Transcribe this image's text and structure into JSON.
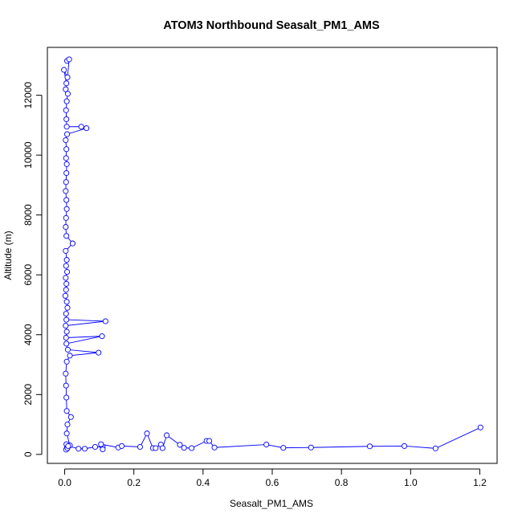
{
  "chart_data": {
    "type": "line",
    "title": "ATOM3 Northbound Seasalt_PM1_AMS",
    "xlabel": "Seasalt_PM1_AMS",
    "ylabel": "Altitude (m)",
    "xlim": [
      -0.05,
      1.25
    ],
    "ylim": [
      -300,
      13600
    ],
    "x_ticks": [
      0.0,
      0.2,
      0.4,
      0.6,
      0.8,
      1.0,
      1.2
    ],
    "x_tick_labels": [
      "0.0",
      "0.2",
      "0.4",
      "0.6",
      "0.8",
      "1.0",
      "1.2"
    ],
    "y_ticks": [
      0,
      2000,
      4000,
      6000,
      8000,
      10000,
      12000
    ],
    "y_tick_labels": [
      "0",
      "2000",
      "4000",
      "6000",
      "8000",
      "10000",
      "12000"
    ],
    "grid": false,
    "series_color": "#0000ff",
    "series": [
      {
        "values": [
          [
            0.007,
            13150
          ],
          [
            0.013,
            13200
          ],
          [
            0.008,
            12600
          ],
          [
            -0.002,
            12850
          ],
          [
            0.005,
            12400
          ],
          [
            0.003,
            12200
          ],
          [
            0.009,
            12050
          ],
          [
            0.006,
            11800
          ],
          [
            0.004,
            11500
          ],
          [
            0.005,
            11200
          ],
          [
            0.006,
            10950
          ],
          [
            0.048,
            10950
          ],
          [
            0.063,
            10900
          ],
          [
            0.007,
            10700
          ],
          [
            0.003,
            10500
          ],
          [
            0.005,
            10200
          ],
          [
            0.004,
            9900
          ],
          [
            0.006,
            9700
          ],
          [
            0.005,
            9400
          ],
          [
            0.004,
            9100
          ],
          [
            0.003,
            8800
          ],
          [
            0.005,
            8500
          ],
          [
            0.006,
            8200
          ],
          [
            0.004,
            7900
          ],
          [
            0.003,
            7600
          ],
          [
            0.005,
            7300
          ],
          [
            0.023,
            7050
          ],
          [
            0.003,
            6800
          ],
          [
            0.006,
            6500
          ],
          [
            0.004,
            6300
          ],
          [
            0.007,
            6100
          ],
          [
            0.003,
            5900
          ],
          [
            0.005,
            5700
          ],
          [
            0.004,
            5500
          ],
          [
            0.002,
            5300
          ],
          [
            0.006,
            5100
          ],
          [
            0.008,
            4900
          ],
          [
            0.004,
            4700
          ],
          [
            0.005,
            4500
          ],
          [
            0.118,
            4450
          ],
          [
            0.003,
            4300
          ],
          [
            0.006,
            4100
          ],
          [
            0.004,
            3900
          ],
          [
            0.108,
            3950
          ],
          [
            0.005,
            3700
          ],
          [
            0.009,
            3500
          ],
          [
            0.098,
            3400
          ],
          [
            0.015,
            3300
          ],
          [
            0.006,
            3100
          ],
          [
            0.003,
            2700
          ],
          [
            0.004,
            2300
          ],
          [
            0.005,
            1900
          ],
          [
            0.006,
            1450
          ],
          [
            0.018,
            1250
          ],
          [
            0.008,
            1000
          ],
          [
            0.006,
            700
          ],
          [
            0.015,
            300
          ],
          [
            0.007,
            230
          ],
          [
            0.007,
            190
          ],
          [
            0.004,
            160
          ],
          [
            0.008,
            210
          ],
          [
            0.005,
            340
          ],
          [
            0.01,
            280
          ],
          [
            0.04,
            190
          ],
          [
            0.058,
            190
          ],
          [
            0.088,
            250
          ],
          [
            0.11,
            250
          ],
          [
            0.11,
            170
          ],
          [
            0.105,
            340
          ],
          [
            0.155,
            230
          ],
          [
            0.165,
            280
          ],
          [
            0.218,
            250
          ],
          [
            0.238,
            700
          ],
          [
            0.255,
            210
          ],
          [
            0.263,
            210
          ],
          [
            0.278,
            330
          ],
          [
            0.283,
            210
          ],
          [
            0.295,
            640
          ],
          [
            0.333,
            320
          ],
          [
            0.345,
            220
          ],
          [
            0.367,
            210
          ],
          [
            0.41,
            450
          ],
          [
            0.418,
            450
          ],
          [
            0.433,
            230
          ],
          [
            0.583,
            330
          ],
          [
            0.632,
            220
          ],
          [
            0.712,
            230
          ],
          [
            0.882,
            270
          ],
          [
            0.982,
            280
          ],
          [
            1.072,
            200
          ],
          [
            1.202,
            900
          ]
        ]
      }
    ]
  }
}
